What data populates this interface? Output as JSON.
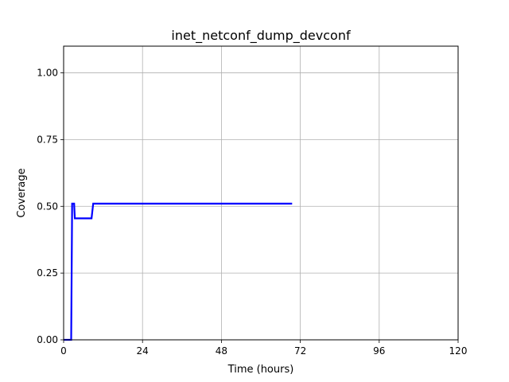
{
  "chart_data": {
    "type": "line",
    "title": "inet_netconf_dump_devconf",
    "xlabel": "Time (hours)",
    "ylabel": "Coverage",
    "xlim": [
      0,
      120
    ],
    "ylim": [
      0,
      1.1
    ],
    "xticks": [
      0,
      24,
      48,
      72,
      96,
      120
    ],
    "xtick_labels": [
      "0",
      "24",
      "48",
      "72",
      "96",
      "120"
    ],
    "yticks": [
      0.0,
      0.25,
      0.5,
      0.75,
      1.0
    ],
    "ytick_labels": [
      "0.00",
      "0.25",
      "0.50",
      "0.75",
      "1.00"
    ],
    "grid": true,
    "series": [
      {
        "color": "#0000ff",
        "x": [
          0,
          2.3,
          2.6,
          3.2,
          3.4,
          8.5,
          9.0,
          69.5
        ],
        "y": [
          0.0,
          0.0,
          0.51,
          0.51,
          0.455,
          0.455,
          0.51,
          0.51
        ]
      }
    ]
  }
}
